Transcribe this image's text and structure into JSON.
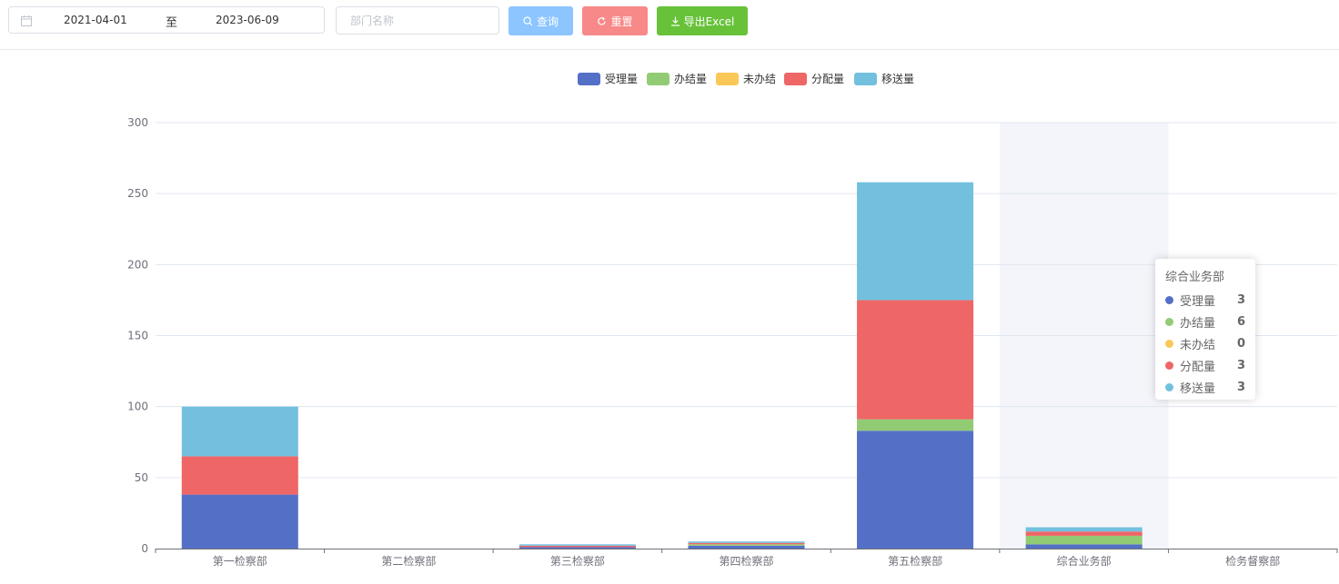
{
  "filters": {
    "start_date": "2021-04-01",
    "separator": "至",
    "end_date": "2023-06-09",
    "dept_placeholder": "部门名称",
    "search_label": "查询",
    "reset_label": "重置",
    "export_label": "导出Excel"
  },
  "legend": [
    {
      "name": "受理量",
      "color": "#5470c6"
    },
    {
      "name": "办结量",
      "color": "#91cc75"
    },
    {
      "name": "未办结",
      "color": "#fac858"
    },
    {
      "name": "分配量",
      "color": "#ee6666"
    },
    {
      "name": "移送量",
      "color": "#73c0de"
    }
  ],
  "chart_data": {
    "type": "bar",
    "stacked": true,
    "categories": [
      "第一检察部",
      "第二检察部",
      "第三检察部",
      "第四检察部",
      "第五检察部",
      "综合业务部",
      "检务督察部"
    ],
    "ylim": [
      0,
      300
    ],
    "yticks": [
      "0",
      "50",
      "100",
      "150",
      "200",
      "250",
      "300"
    ],
    "grid": true,
    "legend_position": "top-center",
    "highlighted_category": "综合业务部",
    "series": [
      {
        "name": "受理量",
        "color": "#5470c6",
        "values": [
          38,
          0,
          1,
          2,
          83,
          3,
          0
        ]
      },
      {
        "name": "办结量",
        "color": "#91cc75",
        "values": [
          0,
          0,
          0,
          1,
          8,
          6,
          0
        ]
      },
      {
        "name": "未办结",
        "color": "#fac858",
        "values": [
          0,
          0,
          0,
          0,
          0,
          0,
          0
        ]
      },
      {
        "name": "分配量",
        "color": "#ee6666",
        "values": [
          27,
          0,
          1,
          1,
          84,
          3,
          0
        ]
      },
      {
        "name": "移送量",
        "color": "#73c0de",
        "values": [
          35,
          0,
          1,
          1,
          83,
          3,
          0
        ]
      }
    ]
  },
  "tooltip": {
    "title": "综合业务部",
    "rows": [
      {
        "name": "受理量",
        "value": "3",
        "color": "#5470c6"
      },
      {
        "name": "办结量",
        "value": "6",
        "color": "#91cc75"
      },
      {
        "name": "未办结",
        "value": "0",
        "color": "#fac858"
      },
      {
        "name": "分配量",
        "value": "3",
        "color": "#ee6666"
      },
      {
        "name": "移送量",
        "value": "3",
        "color": "#73c0de"
      }
    ]
  }
}
